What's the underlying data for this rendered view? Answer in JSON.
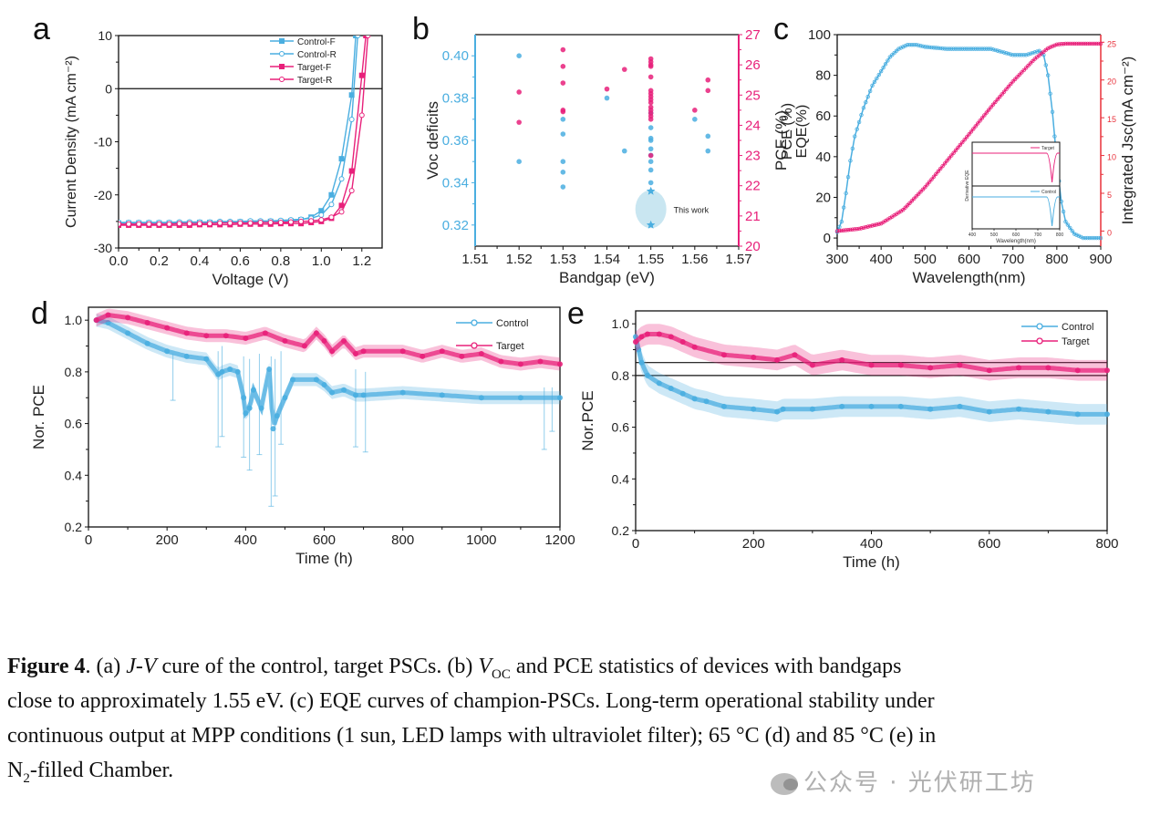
{
  "colors": {
    "control": "#4aaee0",
    "target": "#e8207a",
    "axis": "#111111",
    "highlight": "#bfe2ef"
  },
  "panel_labels": [
    "a",
    "b",
    "c",
    "d",
    "e"
  ],
  "caption": {
    "label": "Figure 4",
    "line1_parts": [
      ". (a) ",
      "J-V",
      " cure of the control, target PSCs. (b) ",
      "V",
      "OC",
      " and PCE statistics of devices with bandgaps"
    ],
    "line2": "close to approximately 1.55 eV. (c) EQE curves of champion-PSCs. Long-term operational stability under",
    "line3": "continuous output at MPP conditions (1 sun, LED lamps with ultraviolet filter); 65 °C (d) and 85 °C (e) in",
    "line4_parts": [
      "N",
      "2",
      "-filled Chamber."
    ]
  },
  "watermark": "公众号 · 光伏研工坊",
  "chart_data": [
    {
      "id": "a",
      "type": "line",
      "title": "",
      "xlabel": "Voltage (V)",
      "ylabel": "Current Density (mA cm⁻²)",
      "xlim": [
        0,
        1.3
      ],
      "ylim": [
        -30,
        10
      ],
      "xticks": [
        0.0,
        0.2,
        0.4,
        0.6,
        0.8,
        1.0,
        1.2
      ],
      "xtick_labels": [
        "0.0",
        "0.2",
        "0.4",
        "0.6",
        "0.8",
        "1.0",
        "1.2"
      ],
      "yticks": [
        -30,
        -20,
        -10,
        0,
        10
      ],
      "ytick_labels": [
        "-30",
        "-20",
        "-10",
        "0",
        "10"
      ],
      "hline": 0,
      "legend": "top-right",
      "series": [
        {
          "name": "Control-F",
          "color_key": "control",
          "marker": "square",
          "x": [
            0,
            0.05,
            0.1,
            0.15,
            0.2,
            0.25,
            0.3,
            0.35,
            0.4,
            0.45,
            0.5,
            0.55,
            0.6,
            0.65,
            0.7,
            0.75,
            0.8,
            0.85,
            0.9,
            0.95,
            1.0,
            1.05,
            1.1,
            1.15,
            1.17
          ],
          "y": [
            -25.3,
            -25.3,
            -25.3,
            -25.3,
            -25.3,
            -25.3,
            -25.3,
            -25.3,
            -25.2,
            -25.2,
            -25.2,
            -25.2,
            -25.1,
            -25.1,
            -25.1,
            -25.0,
            -25.0,
            -24.9,
            -24.7,
            -24.2,
            -23.0,
            -20.0,
            -13.2,
            -1.2,
            10
          ]
        },
        {
          "name": "Control-R",
          "color_key": "control",
          "marker": "circle-open",
          "x": [
            0,
            0.05,
            0.1,
            0.15,
            0.2,
            0.25,
            0.3,
            0.35,
            0.4,
            0.45,
            0.5,
            0.55,
            0.6,
            0.65,
            0.7,
            0.75,
            0.8,
            0.85,
            0.9,
            0.95,
            1.0,
            1.05,
            1.1,
            1.15,
            1.18
          ],
          "y": [
            -25.2,
            -25.2,
            -25.2,
            -25.2,
            -25.2,
            -25.2,
            -25.1,
            -25.1,
            -25.1,
            -25.1,
            -25.0,
            -25.0,
            -25.0,
            -24.9,
            -24.9,
            -24.9,
            -24.8,
            -24.7,
            -24.6,
            -24.4,
            -23.8,
            -21.8,
            -17.0,
            -5.8,
            10
          ]
        },
        {
          "name": "Target-F",
          "color_key": "target",
          "marker": "square",
          "x": [
            0,
            0.05,
            0.1,
            0.15,
            0.2,
            0.25,
            0.3,
            0.35,
            0.4,
            0.45,
            0.5,
            0.55,
            0.6,
            0.65,
            0.7,
            0.75,
            0.8,
            0.85,
            0.9,
            0.95,
            1.0,
            1.05,
            1.1,
            1.15,
            1.2,
            1.22
          ],
          "y": [
            -25.7,
            -25.7,
            -25.7,
            -25.7,
            -25.7,
            -25.7,
            -25.7,
            -25.7,
            -25.6,
            -25.6,
            -25.6,
            -25.6,
            -25.5,
            -25.5,
            -25.5,
            -25.5,
            -25.4,
            -25.4,
            -25.4,
            -25.2,
            -25.0,
            -24.4,
            -22.0,
            -15.5,
            2.5,
            10
          ]
        },
        {
          "name": "Target-R",
          "color_key": "target",
          "marker": "circle-open",
          "x": [
            0,
            0.05,
            0.1,
            0.15,
            0.2,
            0.25,
            0.3,
            0.35,
            0.4,
            0.45,
            0.5,
            0.55,
            0.6,
            0.65,
            0.7,
            0.75,
            0.8,
            0.85,
            0.9,
            0.95,
            1.0,
            1.05,
            1.1,
            1.15,
            1.2,
            1.23
          ],
          "y": [
            -25.5,
            -25.5,
            -25.5,
            -25.5,
            -25.5,
            -25.5,
            -25.4,
            -25.4,
            -25.4,
            -25.4,
            -25.3,
            -25.3,
            -25.3,
            -25.3,
            -25.2,
            -25.2,
            -25.2,
            -25.1,
            -25.0,
            -24.9,
            -24.7,
            -24.2,
            -23.2,
            -19.2,
            -5.0,
            10
          ]
        }
      ]
    },
    {
      "id": "b",
      "type": "scatter",
      "title": "",
      "xlabel": "Bandgap (eV)",
      "ylabel": "Voc deficits",
      "y2label": "PCE (%)",
      "xlim": [
        1.51,
        1.57
      ],
      "ylim": [
        0.31,
        0.41
      ],
      "y2lim": [
        20,
        27
      ],
      "xticks": [
        1.51,
        1.52,
        1.53,
        1.54,
        1.55,
        1.56,
        1.57
      ],
      "xtick_labels": [
        "1.51",
        "1.52",
        "1.53",
        "1.54",
        "1.55",
        "1.56",
        "1.57"
      ],
      "yticks": [
        0.32,
        0.34,
        0.36,
        0.38,
        0.4
      ],
      "ytick_labels": [
        "0.32",
        "0.34",
        "0.36",
        "0.38",
        "0.40"
      ],
      "y2ticks": [
        20,
        21,
        22,
        23,
        24,
        25,
        26,
        27
      ],
      "y2tick_labels": [
        "20",
        "21",
        "22",
        "23",
        "24",
        "25",
        "26",
        "27"
      ],
      "annotation": {
        "text": "This work",
        "x": 1.55,
        "y_range": [
          0.3185,
          0.3365
        ]
      },
      "series": [
        {
          "name": "Voc deficits",
          "axis": "left",
          "color_key": "control",
          "x": [
            1.52,
            1.52,
            1.53,
            1.53,
            1.53,
            1.53,
            1.53,
            1.54,
            1.544,
            1.55,
            1.55,
            1.55,
            1.55,
            1.55,
            1.55,
            1.55,
            1.55,
            1.55,
            1.56,
            1.563,
            1.563
          ],
          "y": [
            0.4,
            0.35,
            0.37,
            0.363,
            0.35,
            0.345,
            0.338,
            0.38,
            0.355,
            0.373,
            0.366,
            0.361,
            0.36,
            0.356,
            0.353,
            0.35,
            0.346,
            0.34,
            0.37,
            0.362,
            0.355
          ]
        },
        {
          "name": "Voc deficits (this work)",
          "axis": "left",
          "color_key": "control",
          "marker": "star",
          "x": [
            1.55,
            1.55
          ],
          "y": [
            0.336,
            0.32
          ]
        },
        {
          "name": "PCE",
          "axis": "right",
          "color_key": "target",
          "x": [
            1.52,
            1.52,
            1.53,
            1.53,
            1.53,
            1.53,
            1.53,
            1.54,
            1.544,
            1.55,
            1.55,
            1.55,
            1.55,
            1.55,
            1.55,
            1.55,
            1.55,
            1.55,
            1.55,
            1.55,
            1.55,
            1.55,
            1.55,
            1.55,
            1.55,
            1.56,
            1.563,
            1.563
          ],
          "y": [
            25.1,
            24.1,
            26.5,
            25.95,
            25.4,
            24.5,
            24.45,
            25.2,
            25.85,
            26.2,
            26.1,
            26.0,
            25.95,
            25.6,
            25.15,
            25.05,
            24.95,
            24.85,
            24.75,
            24.6,
            24.5,
            24.4,
            24.3,
            24.2,
            23.0,
            24.5,
            25.5,
            25.15
          ]
        }
      ]
    },
    {
      "id": "c",
      "type": "line",
      "title": "",
      "xlabel": "Wavelength(nm)",
      "ylabel": "EQE(%)",
      "ylabel_overlay": "PCE (%)",
      "y2label": "Integrated Jsc(mA cm⁻²)",
      "xlim": [
        300,
        900
      ],
      "ylim": [
        -4,
        100
      ],
      "y2lim": [
        -2,
        26
      ],
      "xticks": [
        300,
        400,
        500,
        600,
        700,
        800,
        900
      ],
      "xtick_labels": [
        "300",
        "400",
        "500",
        "600",
        "700",
        "800",
        "900"
      ],
      "yticks": [
        0,
        20,
        40,
        60,
        80,
        100
      ],
      "ytick_labels": [
        "0",
        "20",
        "40",
        "60",
        "80",
        "100"
      ],
      "y2ticks": [
        0,
        5,
        10,
        15,
        20,
        25
      ],
      "y2tick_labels": [
        "0",
        "5",
        "10",
        "15",
        "20",
        "25"
      ],
      "series": [
        {
          "name": "EQE",
          "axis": "left",
          "color_key": "control",
          "x": [
            300,
            310,
            320,
            330,
            340,
            350,
            360,
            380,
            400,
            420,
            440,
            460,
            480,
            500,
            550,
            600,
            650,
            700,
            730,
            760,
            770,
            780,
            790,
            800,
            810,
            820,
            840,
            860,
            900
          ],
          "y": [
            3,
            8,
            22,
            38,
            50,
            57,
            64,
            75,
            82,
            89,
            93,
            95,
            95,
            94,
            93,
            93,
            93,
            90,
            90,
            92,
            90,
            80,
            62,
            38,
            18,
            8,
            2,
            0,
            0
          ]
        },
        {
          "name": "Integrated Jsc",
          "axis": "right",
          "color_key": "target",
          "x": [
            300,
            350,
            400,
            450,
            500,
            550,
            600,
            650,
            700,
            750,
            780,
            800,
            820,
            900
          ],
          "y": [
            0,
            0.3,
            1.0,
            2.8,
            5.8,
            9.3,
            12.8,
            16.4,
            19.8,
            22.8,
            24.2,
            24.7,
            24.8,
            24.8
          ]
        }
      ],
      "inset": {
        "xlabel": "Wavelength(nm)",
        "ylabel": "Derivative EQE",
        "xlim": [
          400,
          800
        ],
        "xtick_labels": [
          "400",
          "500",
          "600",
          "700",
          "800"
        ],
        "series": [
          {
            "name": "Target",
            "color_key": "target",
            "dip_at": 765
          },
          {
            "name": "Control",
            "color_key": "control",
            "dip_at": 765
          }
        ]
      }
    },
    {
      "id": "d",
      "type": "line",
      "title": "",
      "xlabel": "Time (h)",
      "ylabel": "Nor. PCE",
      "xlim": [
        0,
        1200
      ],
      "ylim": [
        0.2,
        1.05
      ],
      "xticks": [
        0,
        200,
        400,
        600,
        800,
        1000,
        1200
      ],
      "xtick_labels": [
        "0",
        "200",
        "400",
        "600",
        "800",
        "1000",
        "1200"
      ],
      "yticks": [
        0.2,
        0.4,
        0.6,
        0.8,
        1.0
      ],
      "ytick_labels": [
        "0.2",
        "0.4",
        "0.6",
        "0.8",
        "1.0"
      ],
      "legend": "top-right",
      "series": [
        {
          "name": "Control",
          "color_key": "control",
          "x": [
            20,
            50,
            100,
            150,
            200,
            250,
            300,
            330,
            340,
            360,
            380,
            395,
            400,
            410,
            420,
            440,
            460,
            470,
            480,
            500,
            520,
            580,
            600,
            620,
            650,
            680,
            700,
            800,
            900,
            1000,
            1100,
            1200
          ],
          "y": [
            1.0,
            0.99,
            0.95,
            0.91,
            0.88,
            0.86,
            0.85,
            0.79,
            0.8,
            0.81,
            0.8,
            0.7,
            0.64,
            0.66,
            0.73,
            0.66,
            0.81,
            0.58,
            0.63,
            0.7,
            0.77,
            0.77,
            0.75,
            0.72,
            0.73,
            0.71,
            0.71,
            0.72,
            0.71,
            0.7,
            0.7,
            0.7
          ]
        },
        {
          "name": "Target",
          "color_key": "target",
          "x": [
            20,
            50,
            100,
            150,
            200,
            250,
            300,
            350,
            400,
            450,
            500,
            550,
            580,
            600,
            620,
            650,
            680,
            700,
            800,
            850,
            900,
            950,
            1000,
            1050,
            1100,
            1150,
            1200
          ],
          "y": [
            1.0,
            1.02,
            1.01,
            0.99,
            0.97,
            0.95,
            0.94,
            0.94,
            0.93,
            0.95,
            0.92,
            0.9,
            0.95,
            0.92,
            0.88,
            0.92,
            0.87,
            0.88,
            0.88,
            0.86,
            0.88,
            0.86,
            0.87,
            0.84,
            0.83,
            0.84,
            0.83
          ]
        }
      ],
      "errorbar_spikes": [
        {
          "x": 215,
          "low": 0.69,
          "high": 0.87
        },
        {
          "x": 330,
          "low": 0.51,
          "high": 0.88
        },
        {
          "x": 340,
          "low": 0.55,
          "high": 0.9
        },
        {
          "x": 395,
          "low": 0.47,
          "high": 0.86
        },
        {
          "x": 410,
          "low": 0.42,
          "high": 0.85
        },
        {
          "x": 435,
          "low": 0.48,
          "high": 0.87
        },
        {
          "x": 465,
          "low": 0.28,
          "high": 0.86
        },
        {
          "x": 475,
          "low": 0.32,
          "high": 0.85
        },
        {
          "x": 490,
          "low": 0.52,
          "high": 0.88
        },
        {
          "x": 680,
          "low": 0.51,
          "high": 0.81
        },
        {
          "x": 705,
          "low": 0.49,
          "high": 0.8
        },
        {
          "x": 1160,
          "low": 0.5,
          "high": 0.74
        },
        {
          "x": 1180,
          "low": 0.57,
          "high": 0.74
        }
      ]
    },
    {
      "id": "e",
      "type": "line",
      "title": "",
      "xlabel": "Time (h)",
      "ylabel": "Nor.PCE",
      "xlim": [
        0,
        800
      ],
      "ylim": [
        0.2,
        1.05
      ],
      "xticks": [
        0,
        200,
        400,
        600,
        800
      ],
      "xtick_labels": [
        "0",
        "200",
        "400",
        "600",
        "800"
      ],
      "yticks": [
        0.2,
        0.4,
        0.6,
        0.8,
        1.0
      ],
      "ytick_labels": [
        "0.2",
        "0.4",
        "0.6",
        "0.8",
        "1.0"
      ],
      "hlines": [
        0.8,
        0.85
      ],
      "legend": "top-right",
      "series": [
        {
          "name": "Control",
          "color_key": "control",
          "x": [
            0,
            5,
            10,
            20,
            40,
            60,
            80,
            100,
            120,
            150,
            200,
            240,
            250,
            300,
            350,
            400,
            450,
            500,
            550,
            600,
            650,
            700,
            750,
            800
          ],
          "y": [
            0.95,
            0.9,
            0.85,
            0.8,
            0.77,
            0.75,
            0.73,
            0.71,
            0.7,
            0.68,
            0.67,
            0.66,
            0.67,
            0.67,
            0.68,
            0.68,
            0.68,
            0.67,
            0.68,
            0.66,
            0.67,
            0.66,
            0.65,
            0.65
          ]
        },
        {
          "name": "Target",
          "color_key": "target",
          "x": [
            0,
            10,
            20,
            40,
            60,
            80,
            100,
            150,
            200,
            240,
            270,
            300,
            350,
            400,
            450,
            500,
            550,
            600,
            650,
            700,
            750,
            800
          ],
          "y": [
            0.93,
            0.95,
            0.96,
            0.96,
            0.95,
            0.93,
            0.91,
            0.88,
            0.87,
            0.86,
            0.88,
            0.84,
            0.86,
            0.84,
            0.84,
            0.83,
            0.84,
            0.82,
            0.83,
            0.83,
            0.82,
            0.82
          ]
        }
      ],
      "band_halfwidth": 0.04
    }
  ]
}
